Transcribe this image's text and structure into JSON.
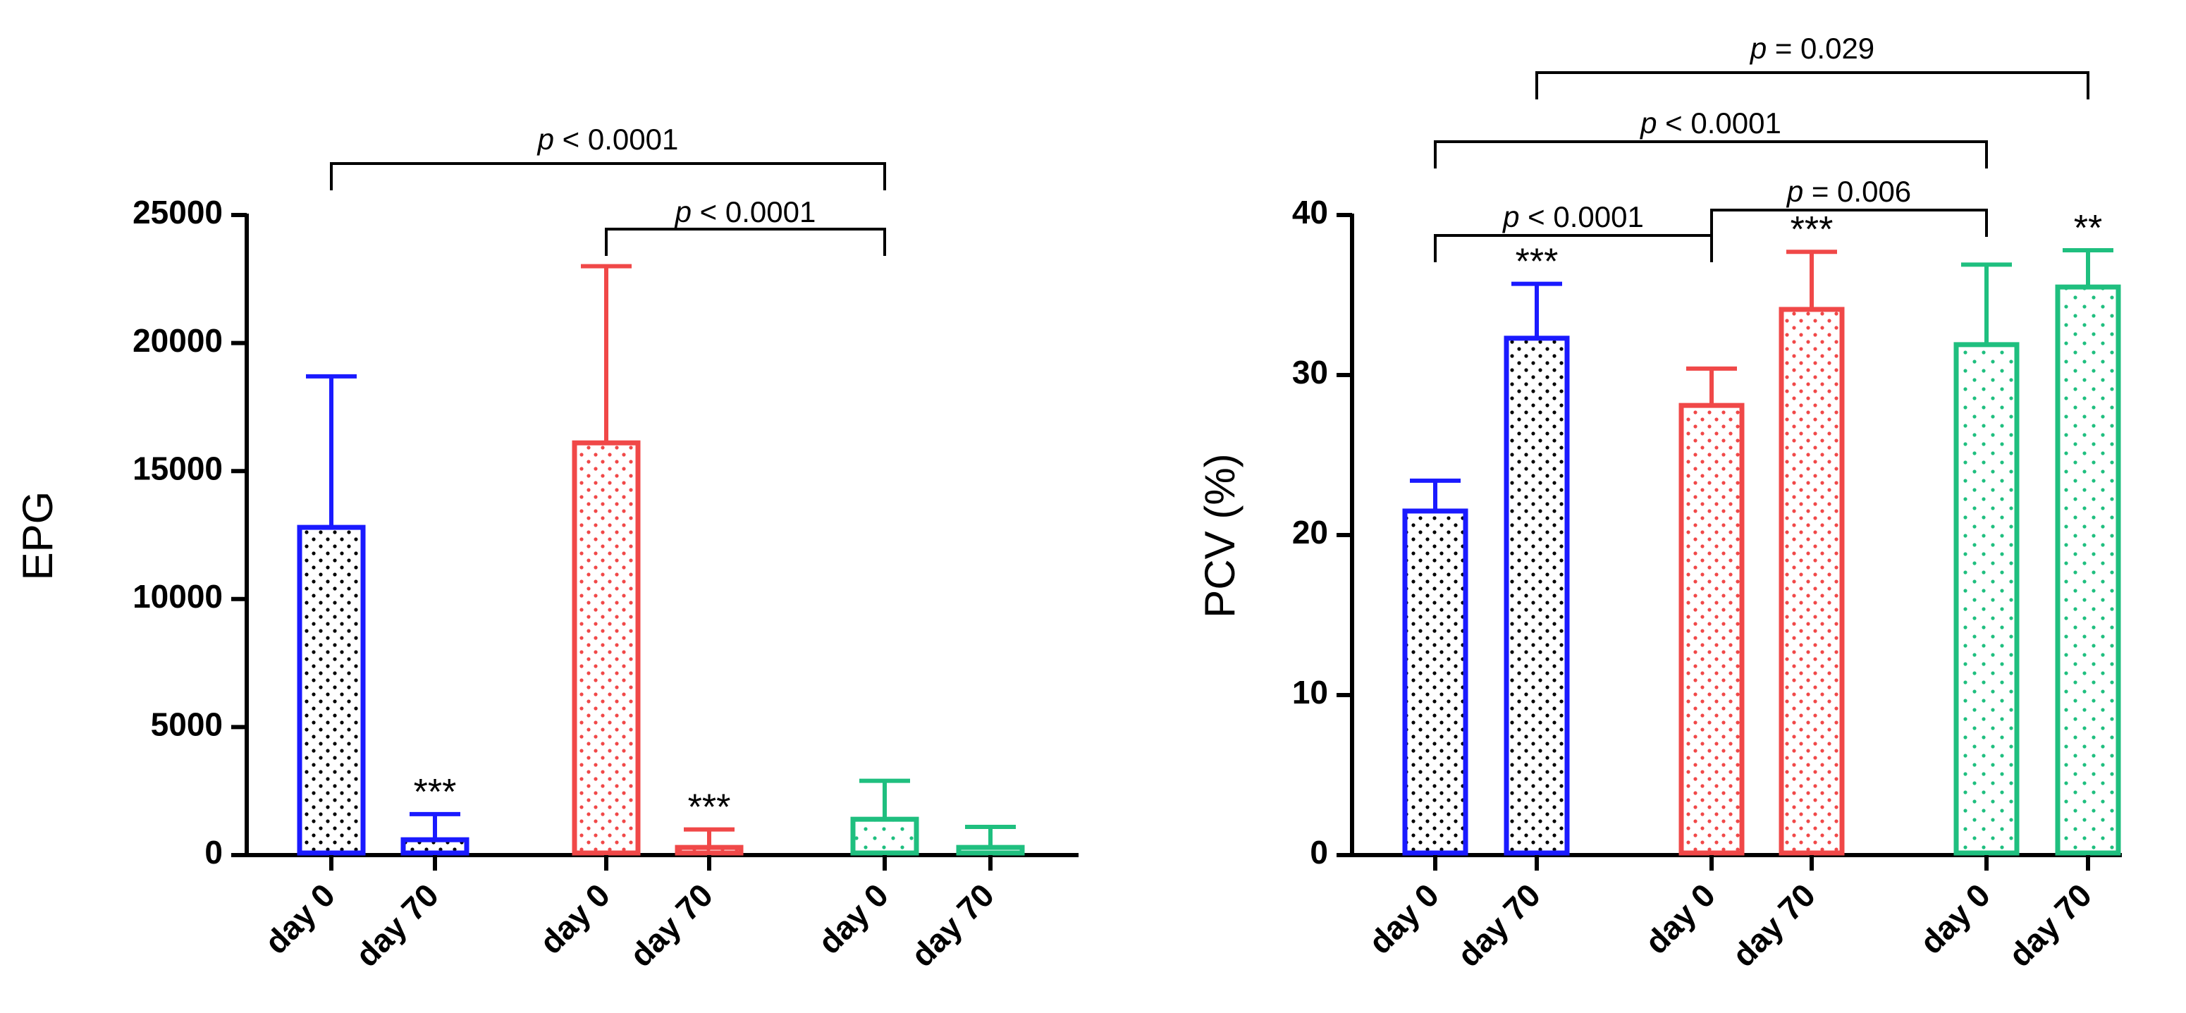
{
  "chart_data": [
    {
      "type": "bar",
      "ylabel": "EPG",
      "ylim": [
        0,
        25000
      ],
      "yticks": [
        "0",
        "5000",
        "10000",
        "15000",
        "20000",
        "25000"
      ],
      "categories": [
        "day 0",
        "day 70",
        "day 0",
        "day 70",
        "day 0",
        "day 70"
      ],
      "colors": [
        "#1a1aff",
        "#1a1aff",
        "#f04848",
        "#f04848",
        "#1fbf7f",
        "#1fbf7f"
      ],
      "values": [
        12800,
        600,
        16100,
        300,
        1400,
        300
      ],
      "errors": [
        5900,
        1000,
        6900,
        700,
        1500,
        800
      ],
      "stars": [
        "",
        "***",
        "",
        "***",
        "",
        ""
      ],
      "brackets": [
        {
          "label": "p < 0.0001",
          "from": 0,
          "to": 4
        },
        {
          "label": "p < 0.0001",
          "from": 2,
          "to": 4
        }
      ]
    },
    {
      "type": "bar",
      "ylabel": "PCV (%)",
      "ylim": [
        0,
        40
      ],
      "yticks": [
        "0",
        "10",
        "20",
        "30",
        "40"
      ],
      "categories": [
        "day 0",
        "day 70",
        "day 0",
        "day 70",
        "day 0",
        "day 70"
      ],
      "colors": [
        "#1a1aff",
        "#1a1aff",
        "#f04848",
        "#f04848",
        "#1fbf7f",
        "#1fbf7f"
      ],
      "values": [
        21.5,
        32.3,
        28.1,
        34.1,
        31.9,
        35.5
      ],
      "errors": [
        1.9,
        3.4,
        2.3,
        3.6,
        5.0,
        2.3
      ],
      "stars": [
        "",
        "***",
        "",
        "***",
        "",
        "**"
      ],
      "brackets": [
        {
          "label": "p = 0.029",
          "from": 1,
          "to": 5
        },
        {
          "label": "p < 0.0001",
          "from": 0,
          "to": 4
        },
        {
          "label": "p = 0.006",
          "from": 2,
          "to": 4
        },
        {
          "label": "p < 0.0001",
          "from": 0,
          "to": 2
        }
      ]
    }
  ]
}
